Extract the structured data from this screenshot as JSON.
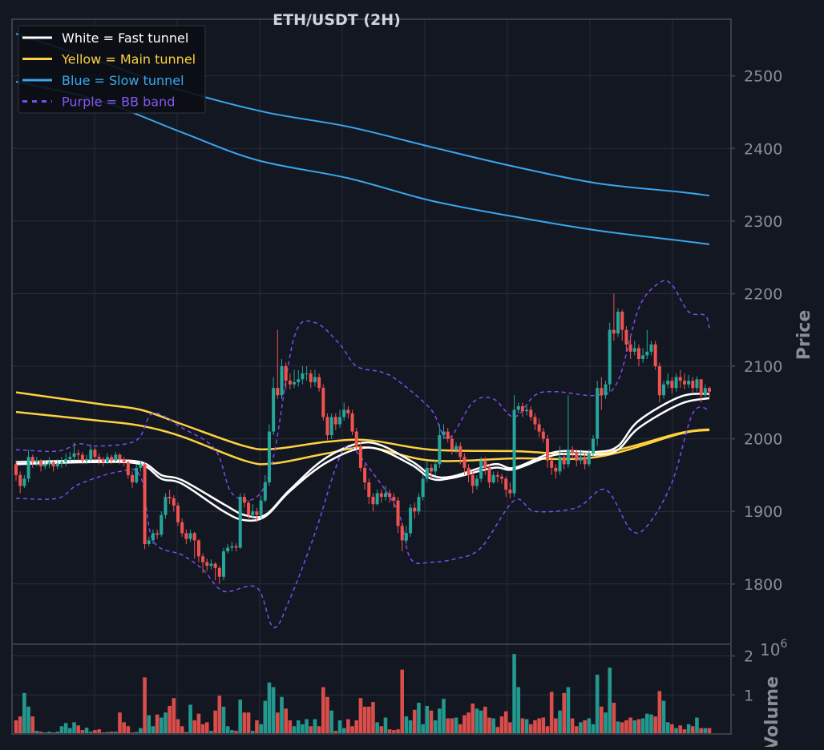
{
  "chart_data": {
    "type": "candlestick",
    "title": "ETH/USDT (2H)",
    "ylabel": "Price",
    "volume_ylabel": "Volume",
    "volume_multiplier": "10^6",
    "ylim": [
      1717,
      2578
    ],
    "yticks": [
      1800,
      1900,
      2000,
      2100,
      2200,
      2300,
      2400,
      2500
    ],
    "volume_ylim": [
      0,
      2.3
    ],
    "volume_yticks": [
      1,
      2
    ],
    "grid": true,
    "legend_position": "top-left",
    "colors": {
      "background": "#131722",
      "grid": "#2a2e39",
      "frame": "#3a3e48",
      "up": "#26a69a",
      "down": "#ef5350",
      "fast": "#ffffff",
      "main": "#fdd13f",
      "slow": "#3aa6f0",
      "bb": "#7b4cf0",
      "text": "#d1d4dc",
      "axis_text": "#8a8d94"
    },
    "legend": [
      {
        "label": "White = Fast tunnel",
        "color": "#ffffff",
        "style": "solid"
      },
      {
        "label": "Yellow = Main tunnel",
        "color": "#fdd13f",
        "style": "solid"
      },
      {
        "label": "Blue = Slow tunnel",
        "color": "#3aa6f0",
        "style": "solid"
      },
      {
        "label": "Purple = BB band",
        "color": "#7b4cf0",
        "style": "dashed"
      }
    ],
    "first_open": 1965,
    "close": [
      1950,
      1935,
      1945,
      1975,
      1968,
      1970,
      1962,
      1965,
      1968,
      1962,
      1966,
      1968,
      1972,
      1975,
      1980,
      1978,
      1970,
      1972,
      1985,
      1975,
      1972,
      1968,
      1975,
      1970,
      1978,
      1972,
      1968,
      1950,
      1940,
      1960,
      1965,
      1855,
      1860,
      1870,
      1868,
      1895,
      1920,
      1918,
      1908,
      1885,
      1870,
      1862,
      1870,
      1860,
      1838,
      1830,
      1825,
      1828,
      1822,
      1810,
      1845,
      1850,
      1852,
      1850,
      1920,
      1912,
      1895,
      1900,
      1895,
      1915,
      1940,
      2010,
      2070,
      2060,
      2100,
      2080,
      2075,
      2078,
      2082,
      2090,
      2090,
      2078,
      2085,
      2070,
      2030,
      2005,
      2030,
      2020,
      2030,
      2040,
      2035,
      2010,
      1990,
      1960,
      1940,
      1920,
      1910,
      1925,
      1920,
      1925,
      1920,
      1915,
      1880,
      1860,
      1870,
      1905,
      1900,
      1920,
      1945,
      1960,
      1955,
      1965,
      2005,
      2010,
      2000,
      1985,
      1990,
      1975,
      1960,
      1950,
      1935,
      1945,
      1970,
      1960,
      1940,
      1950,
      1948,
      1945,
      1930,
      1925,
      2040,
      2045,
      2038,
      2040,
      2030,
      2020,
      2010,
      2000,
      1970,
      1960,
      1955,
      1975,
      1965,
      1985,
      1980,
      1970,
      1975,
      1965,
      1980,
      2000,
      2070,
      2060,
      2075,
      2150,
      2145,
      2175,
      2150,
      2130,
      2120,
      2125,
      2110,
      2115,
      2120,
      2130,
      2100,
      2060,
      2075,
      2080,
      2070,
      2085,
      2080,
      2075,
      2080,
      2070,
      2082,
      2060,
      2070,
      2065
    ],
    "high": [
      1970,
      1955,
      1950,
      1985,
      1978,
      1975,
      1972,
      1970,
      1975,
      1970,
      1972,
      1975,
      1980,
      1982,
      1995,
      1985,
      1982,
      1978,
      1992,
      1988,
      1980,
      1975,
      1980,
      1978,
      1982,
      1980,
      1975,
      1970,
      1955,
      1965,
      1970,
      1968,
      1865,
      1875,
      1875,
      1900,
      1925,
      1930,
      1922,
      1912,
      1890,
      1875,
      1875,
      1872,
      1862,
      1842,
      1835,
      1834,
      1830,
      1825,
      1850,
      1855,
      1858,
      1856,
      1925,
      1925,
      1915,
      1910,
      1905,
      1922,
      1950,
      2020,
      2085,
      2150,
      2110,
      2105,
      2090,
      2095,
      2095,
      2100,
      2100,
      2095,
      2095,
      2090,
      2075,
      2035,
      2035,
      2035,
      2040,
      2050,
      2045,
      2040,
      2015,
      1995,
      1965,
      1945,
      1925,
      1930,
      1930,
      1935,
      1930,
      1925,
      1920,
      1885,
      1880,
      1910,
      1912,
      1925,
      1950,
      1970,
      1965,
      1970,
      2020,
      2020,
      2015,
      2005,
      1995,
      1995,
      1980,
      1965,
      1955,
      1950,
      1975,
      1975,
      1965,
      1955,
      1955,
      1952,
      1948,
      1940,
      2060,
      2050,
      2050,
      2045,
      2045,
      2035,
      2028,
      2015,
      2005,
      1975,
      1965,
      1990,
      1980,
      2060,
      1990,
      1985,
      1985,
      1980,
      1985,
      2005,
      2080,
      2085,
      2080,
      2160,
      2200,
      2180,
      2178,
      2155,
      2140,
      2135,
      2130,
      2125,
      2150,
      2135,
      2135,
      2105,
      2080,
      2090,
      2085,
      2090,
      2095,
      2090,
      2088,
      2085,
      2086,
      2082,
      2075,
      2072
    ],
    "low": [
      1942,
      1925,
      1932,
      1940,
      1960,
      1962,
      1955,
      1958,
      1960,
      1955,
      1958,
      1960,
      1962,
      1968,
      1970,
      1970,
      1965,
      1965,
      1968,
      1970,
      1965,
      1962,
      1965,
      1965,
      1968,
      1965,
      1962,
      1945,
      1932,
      1938,
      1955,
      1848,
      1852,
      1855,
      1862,
      1865,
      1890,
      1910,
      1900,
      1880,
      1865,
      1855,
      1858,
      1835,
      1830,
      1815,
      1818,
      1820,
      1805,
      1800,
      1805,
      1842,
      1845,
      1845,
      1848,
      1905,
      1888,
      1890,
      1885,
      1890,
      1912,
      1935,
      2005,
      2055,
      2055,
      2068,
      2068,
      2070,
      2072,
      2075,
      2080,
      2070,
      2072,
      2065,
      2025,
      1998,
      2000,
      2012,
      2015,
      2025,
      2028,
      2005,
      1985,
      1955,
      1930,
      1910,
      1900,
      1908,
      1912,
      1915,
      1912,
      1905,
      1870,
      1845,
      1855,
      1865,
      1890,
      1895,
      1915,
      1940,
      1945,
      1950,
      1960,
      2000,
      1995,
      1978,
      1980,
      1965,
      1950,
      1940,
      1925,
      1930,
      1940,
      1950,
      1932,
      1938,
      1940,
      1938,
      1920,
      1918,
      1920,
      2035,
      2030,
      2032,
      2025,
      2012,
      2002,
      1995,
      1960,
      1950,
      1945,
      1950,
      1958,
      1960,
      1972,
      1962,
      1965,
      1958,
      1962,
      1975,
      1990,
      2040,
      2055,
      2065,
      2135,
      2140,
      2135,
      2120,
      2110,
      2115,
      2100,
      2105,
      2110,
      2115,
      2095,
      2050,
      2055,
      2070,
      2062,
      2065,
      2070,
      2068,
      2070,
      2062,
      2065,
      2050,
      2058,
      2058
    ],
    "volume": [
      0.35,
      0.45,
      1.05,
      0.7,
      0.45,
      0.08,
      0.06,
      0.04,
      0.06,
      0.04,
      0.06,
      0.2,
      0.28,
      0.15,
      0.3,
      0.22,
      0.1,
      0.16,
      0.06,
      0.1,
      0.12,
      0.04,
      0.05,
      0.06,
      0.06,
      0.55,
      0.3,
      0.2,
      0.04,
      0.05,
      0.15,
      1.45,
      0.48,
      0.2,
      0.5,
      0.42,
      0.55,
      0.72,
      0.92,
      0.38,
      0.2,
      0.05,
      0.75,
      0.35,
      0.52,
      0.25,
      0.3,
      0.08,
      0.6,
      0.98,
      0.7,
      0.2,
      0.1,
      0.08,
      0.88,
      0.55,
      0.55,
      0.08,
      0.35,
      0.25,
      0.85,
      1.32,
      1.2,
      0.55,
      0.95,
      0.65,
      0.35,
      0.2,
      0.35,
      0.25,
      0.38,
      0.2,
      0.38,
      0.2,
      1.2,
      0.95,
      0.6,
      0.08,
      0.35,
      0.15,
      0.38,
      0.2,
      0.35,
      0.92,
      0.7,
      0.7,
      0.82,
      0.3,
      0.2,
      0.42,
      0.12,
      0.1,
      0.12,
      1.65,
      0.45,
      0.35,
      0.62,
      0.8,
      0.25,
      0.72,
      0.6,
      0.35,
      0.65,
      0.9,
      0.4,
      0.4,
      0.42,
      0.25,
      0.48,
      0.55,
      0.78,
      0.65,
      0.6,
      0.7,
      0.42,
      0.4,
      0.18,
      0.45,
      0.58,
      0.3,
      2.05,
      1.2,
      0.4,
      0.38,
      0.25,
      0.35,
      0.4,
      0.42,
      0.2,
      1.08,
      0.4,
      0.6,
      1.05,
      1.2,
      0.4,
      0.2,
      0.3,
      0.35,
      0.4,
      0.25,
      1.52,
      0.7,
      0.55,
      1.7,
      0.8,
      0.32,
      0.3,
      0.35,
      0.42,
      0.35,
      0.38,
      0.4,
      0.52,
      0.5,
      0.45,
      1.1,
      0.85,
      0.3,
      0.25,
      0.15,
      0.22,
      0.12,
      0.25,
      0.2,
      0.42,
      0.15,
      0.15,
      0.15
    ],
    "lines": [
      {
        "id": "slow-upper",
        "color": "#3aa6f0",
        "dash": false,
        "points": [
          [
            0,
            2558
          ],
          [
            20,
            2520
          ],
          [
            40,
            2480
          ],
          [
            60,
            2450
          ],
          [
            80,
            2430
          ],
          [
            100,
            2402
          ],
          [
            120,
            2375
          ],
          [
            140,
            2352
          ],
          [
            160,
            2340
          ],
          [
            167,
            2335
          ]
        ]
      },
      {
        "id": "slow-lower",
        "color": "#3aa6f0",
        "dash": false,
        "points": [
          [
            0,
            2492
          ],
          [
            20,
            2466
          ],
          [
            40,
            2422
          ],
          [
            58,
            2384
          ],
          [
            80,
            2359
          ],
          [
            100,
            2328
          ],
          [
            120,
            2306
          ],
          [
            140,
            2287
          ],
          [
            160,
            2273
          ],
          [
            167,
            2268
          ]
        ]
      },
      {
        "id": "main-upper",
        "color": "#fdd13f",
        "dash": false,
        "points": [
          [
            0,
            2064
          ],
          [
            20,
            2048
          ],
          [
            30,
            2040
          ],
          [
            40,
            2020
          ],
          [
            55,
            1990
          ],
          [
            62,
            1986
          ],
          [
            75,
            1996
          ],
          [
            85,
            1998
          ],
          [
            100,
            1985
          ],
          [
            120,
            1983
          ],
          [
            140,
            1980
          ],
          [
            160,
            2008
          ],
          [
            167,
            2013
          ]
        ]
      },
      {
        "id": "main-lower",
        "color": "#fdd13f",
        "dash": false,
        "points": [
          [
            0,
            2037
          ],
          [
            20,
            2025
          ],
          [
            30,
            2018
          ],
          [
            40,
            2003
          ],
          [
            55,
            1970
          ],
          [
            62,
            1966
          ],
          [
            75,
            1980
          ],
          [
            85,
            1988
          ],
          [
            100,
            1970
          ],
          [
            120,
            1973
          ],
          [
            140,
            1975
          ],
          [
            160,
            2007
          ],
          [
            167,
            2012
          ]
        ]
      },
      {
        "id": "fast-upper",
        "color": "#ffffff",
        "dash": false,
        "points": [
          [
            0,
            1968
          ],
          [
            20,
            1970
          ],
          [
            30,
            1968
          ],
          [
            35,
            1950
          ],
          [
            40,
            1943
          ],
          [
            50,
            1910
          ],
          [
            55,
            1895
          ],
          [
            60,
            1895
          ],
          [
            66,
            1930
          ],
          [
            75,
            1975
          ],
          [
            85,
            1995
          ],
          [
            95,
            1970
          ],
          [
            100,
            1950
          ],
          [
            105,
            1948
          ],
          [
            115,
            1965
          ],
          [
            120,
            1960
          ],
          [
            130,
            1982
          ],
          [
            140,
            1982
          ],
          [
            145,
            1990
          ],
          [
            150,
            2025
          ],
          [
            160,
            2058
          ],
          [
            167,
            2062
          ]
        ]
      },
      {
        "id": "fast-lower",
        "color": "#ffffff",
        "dash": false,
        "points": [
          [
            0,
            1965
          ],
          [
            20,
            1968
          ],
          [
            30,
            1965
          ],
          [
            35,
            1945
          ],
          [
            40,
            1938
          ],
          [
            50,
            1900
          ],
          [
            55,
            1888
          ],
          [
            60,
            1893
          ],
          [
            66,
            1928
          ],
          [
            75,
            1968
          ],
          [
            85,
            1988
          ],
          [
            95,
            1965
          ],
          [
            100,
            1945
          ],
          [
            105,
            1946
          ],
          [
            115,
            1960
          ],
          [
            120,
            1958
          ],
          [
            130,
            1978
          ],
          [
            140,
            1978
          ],
          [
            145,
            1985
          ],
          [
            150,
            2015
          ],
          [
            160,
            2048
          ],
          [
            167,
            2056
          ]
        ]
      },
      {
        "id": "bb-upper",
        "color": "#7b4cf0",
        "dash": true,
        "points": [
          [
            0,
            1985
          ],
          [
            10,
            1983
          ],
          [
            15,
            1993
          ],
          [
            20,
            1990
          ],
          [
            29,
            1998
          ],
          [
            33,
            2035
          ],
          [
            40,
            2015
          ],
          [
            48,
            1985
          ],
          [
            52,
            1925
          ],
          [
            58,
            1920
          ],
          [
            62,
            1975
          ],
          [
            67,
            2140
          ],
          [
            72,
            2160
          ],
          [
            78,
            2130
          ],
          [
            82,
            2100
          ],
          [
            88,
            2092
          ],
          [
            92,
            2080
          ],
          [
            100,
            2040
          ],
          [
            104,
            2000
          ],
          [
            110,
            2050
          ],
          [
            115,
            2055
          ],
          [
            120,
            2030
          ],
          [
            125,
            2060
          ],
          [
            130,
            2065
          ],
          [
            140,
            2060
          ],
          [
            145,
            2080
          ],
          [
            150,
            2180
          ],
          [
            155,
            2215
          ],
          [
            158,
            2212
          ],
          [
            162,
            2175
          ],
          [
            166,
            2170
          ],
          [
            167,
            2152
          ]
        ]
      },
      {
        "id": "bb-lower",
        "color": "#7b4cf0",
        "dash": true,
        "points": [
          [
            0,
            1918
          ],
          [
            10,
            1918
          ],
          [
            15,
            1937
          ],
          [
            25,
            1955
          ],
          [
            30,
            1948
          ],
          [
            33,
            1860
          ],
          [
            40,
            1840
          ],
          [
            45,
            1820
          ],
          [
            50,
            1790
          ],
          [
            58,
            1795
          ],
          [
            62,
            1740
          ],
          [
            66,
            1780
          ],
          [
            72,
            1870
          ],
          [
            77,
            1960
          ],
          [
            80,
            1990
          ],
          [
            85,
            1960
          ],
          [
            92,
            1900
          ],
          [
            95,
            1835
          ],
          [
            100,
            1830
          ],
          [
            106,
            1835
          ],
          [
            112,
            1850
          ],
          [
            120,
            1915
          ],
          [
            125,
            1900
          ],
          [
            135,
            1905
          ],
          [
            142,
            1930
          ],
          [
            148,
            1875
          ],
          [
            152,
            1880
          ],
          [
            158,
            1940
          ],
          [
            163,
            2035
          ],
          [
            167,
            2040
          ]
        ]
      }
    ]
  }
}
